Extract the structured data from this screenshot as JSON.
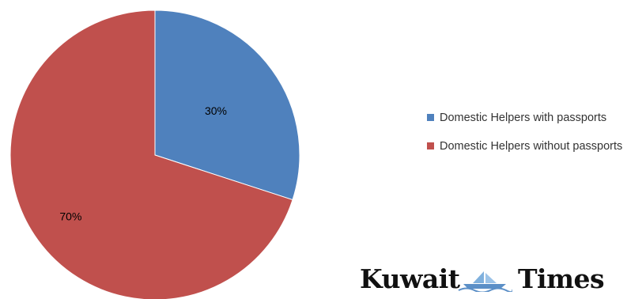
{
  "chart_data": {
    "type": "pie",
    "categories": [
      "Domestic Helpers with passports",
      "Domestic Helpers without passports"
    ],
    "values": [
      30,
      70
    ],
    "value_labels": [
      "30%",
      "70%"
    ],
    "colors": [
      "#4f81bd",
      "#c0504d"
    ],
    "legend_position": "right"
  },
  "legend": {
    "items": [
      {
        "label": "Domestic Helpers with passports",
        "color": "#4f81bd"
      },
      {
        "label": "Domestic Helpers without passports",
        "color": "#c0504d"
      }
    ]
  },
  "brand": {
    "name": "Kuwait Times",
    "word_1": "Kuwait",
    "word_2": "Times",
    "emblem_icon": "ship-emblem-icon"
  }
}
